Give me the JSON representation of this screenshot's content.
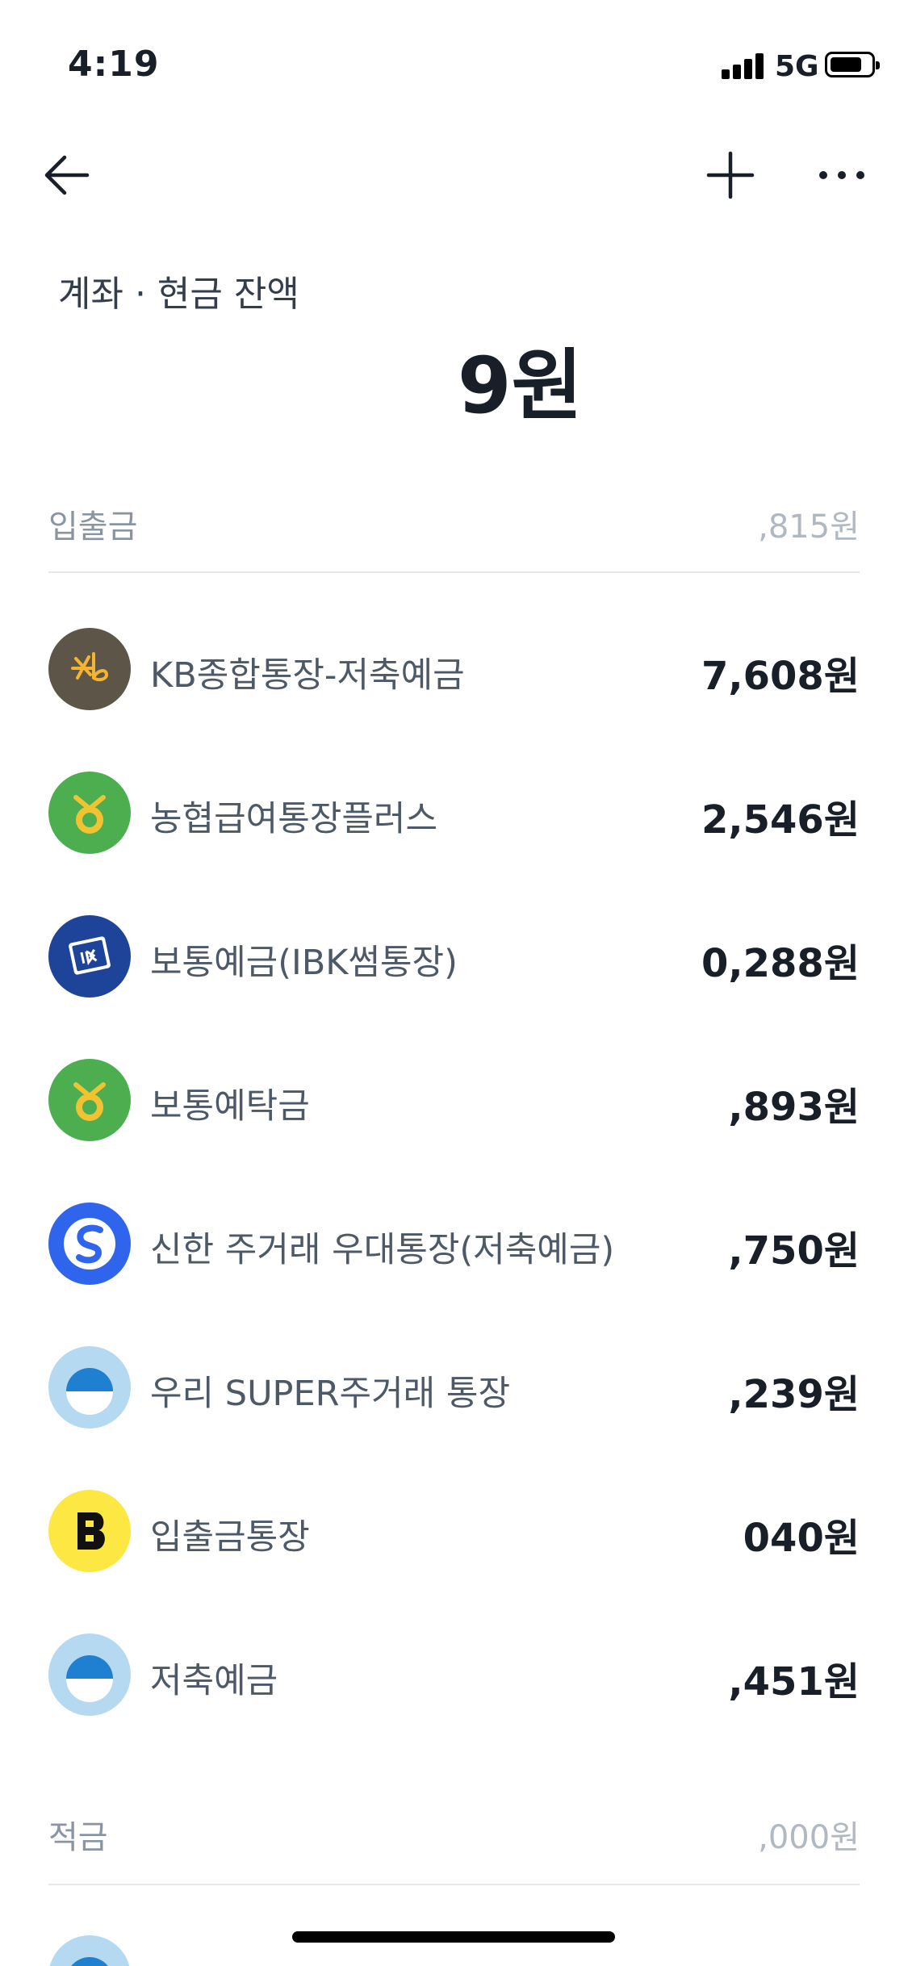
{
  "status_bar": {
    "time": "4:19",
    "network": "5G"
  },
  "header": {
    "section_label": "계좌 · 현금 잔액",
    "total": "9원"
  },
  "groups": [
    {
      "title": "입출금",
      "amount": ",815원",
      "accounts": [
        {
          "name": "KB종합통장-저축예금",
          "amount": "7,608원",
          "logo": "kb-logo"
        },
        {
          "name": "농협급여통장플러스",
          "amount": "2,546원",
          "logo": "nh-logo"
        },
        {
          "name": "보통예금(IBK썸통장)",
          "amount": "0,288원",
          "logo": "ibk-logo"
        },
        {
          "name": "보통예탁금",
          "amount": ",893원",
          "logo": "nh-logo"
        },
        {
          "name": "신한 주거래 우대통장(저축예금)",
          "amount": ",750원",
          "logo": "shinhan-logo"
        },
        {
          "name": "우리 SUPER주거래 통장",
          "amount": ",239원",
          "logo": "woori-logo"
        },
        {
          "name": "입출금통장",
          "amount": "040원",
          "logo": "toss-logo"
        },
        {
          "name": "저축예금",
          "amount": ",451원",
          "logo": "woori-logo"
        }
      ]
    },
    {
      "title": "적금",
      "amount": ",000원",
      "accounts": [
        {
          "name": "",
          "amount": "",
          "logo": "woori-logo"
        }
      ]
    }
  ],
  "colors": {
    "text_primary": "#191f28",
    "text_secondary": "#4e5968",
    "divider": "#e5e8eb"
  }
}
